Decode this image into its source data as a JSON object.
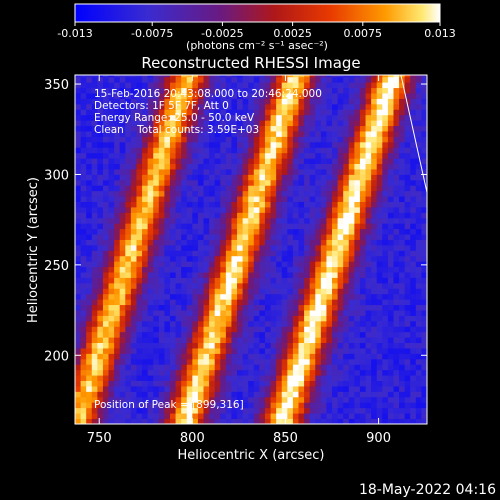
{
  "chart_data": {
    "type": "heatmap",
    "title": "Reconstructed RHESSI Image",
    "xlabel": "Heliocentric X (arcsec)",
    "ylabel": "Heliocentric Y (arcsec)",
    "xlim": [
      737,
      926
    ],
    "ylim": [
      162,
      355
    ],
    "x_ticks": [
      750,
      800,
      850,
      900
    ],
    "y_ticks": [
      200,
      250,
      300,
      350
    ],
    "colorbar": {
      "range": [
        -0.013,
        0.013
      ],
      "ticks": [
        "-0.013",
        "-0.0075",
        "-0.0025",
        "0.0025",
        "0.0075",
        "0.013"
      ],
      "units_line": "(photons cm⁻² s⁻¹ asec⁻²)"
    },
    "annotations": [
      "15-Feb-2016 20:43:08.000 to 20:46:24.000",
      "Detectors: 1F 5F 7F, Att 0",
      "Energy Range: 25.0 - 50.0 keV",
      "Clean    Total counts: 3.59E+03"
    ],
    "peak_label": "Position of Peak = [899,316]",
    "peak": [
      899,
      316
    ],
    "ridges": [
      {
        "x_at_350": 795,
        "slope_dx_dy": 0.31,
        "amp": 0.011
      },
      {
        "x_at_350": 853,
        "slope_dx_dy": 0.31,
        "amp": 0.012
      },
      {
        "x_at_350": 905,
        "slope_dx_dy": 0.31,
        "amp": 0.013
      }
    ],
    "limb_curve": [
      [
        912,
        355
      ],
      [
        926,
        290
      ]
    ]
  },
  "footer_date": "18-May-2022 04:16"
}
